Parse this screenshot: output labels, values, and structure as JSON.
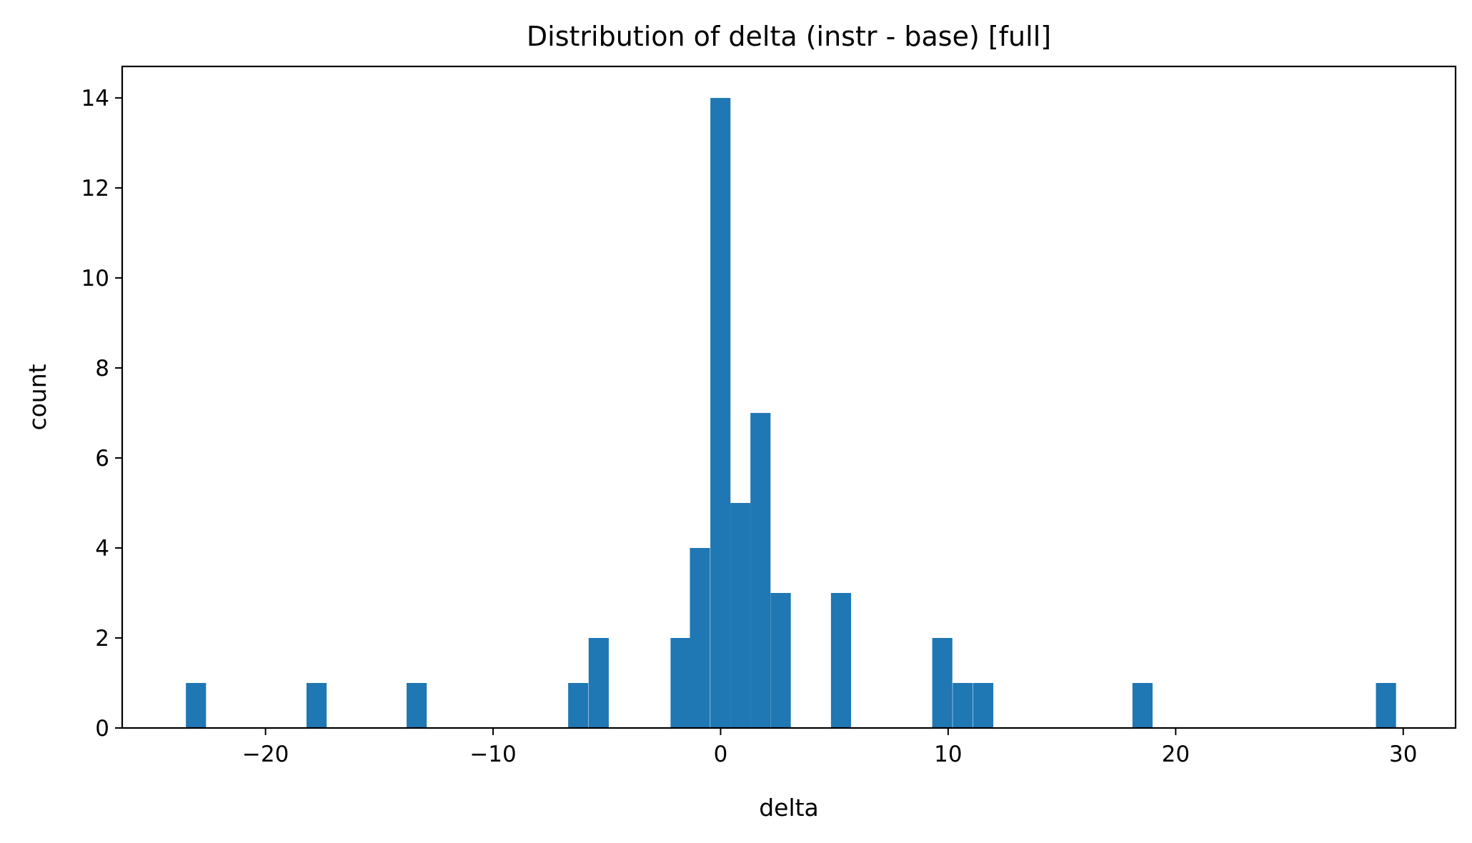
{
  "chart_data": {
    "type": "bar",
    "title": "Distribution of delta (instr - base) [full]",
    "xlabel": "delta",
    "ylabel": "count",
    "xlim": [
      -26.3,
      32.3
    ],
    "ylim": [
      0,
      14.7
    ],
    "xticks": [
      -20,
      -10,
      0,
      10,
      20,
      30
    ],
    "xtick_labels": [
      "−20",
      "−10",
      "0",
      "10",
      "20",
      "30"
    ],
    "yticks": [
      0,
      2,
      4,
      6,
      8,
      10,
      12,
      14
    ],
    "ytick_labels": [
      "0",
      "2",
      "4",
      "6",
      "8",
      "10",
      "12",
      "14"
    ],
    "bar_color": "#1f77b4",
    "bin_width": 0.884,
    "bins": [
      {
        "left": -23.5,
        "count": 1
      },
      {
        "left": -18.2,
        "count": 1
      },
      {
        "left": -13.8,
        "count": 1
      },
      {
        "left": -6.7,
        "count": 1
      },
      {
        "left": -5.8,
        "count": 2
      },
      {
        "left": -2.2,
        "count": 2
      },
      {
        "left": -1.35,
        "count": 4
      },
      {
        "left": -0.45,
        "count": 14
      },
      {
        "left": 0.43,
        "count": 5
      },
      {
        "left": 1.31,
        "count": 7
      },
      {
        "left": 2.2,
        "count": 3
      },
      {
        "left": 4.85,
        "count": 3
      },
      {
        "left": 9.3,
        "count": 2
      },
      {
        "left": 10.2,
        "count": 1
      },
      {
        "left": 11.1,
        "count": 1
      },
      {
        "left": 18.1,
        "count": 1
      },
      {
        "left": 28.8,
        "count": 1
      }
    ],
    "grid": false,
    "legend": false
  }
}
